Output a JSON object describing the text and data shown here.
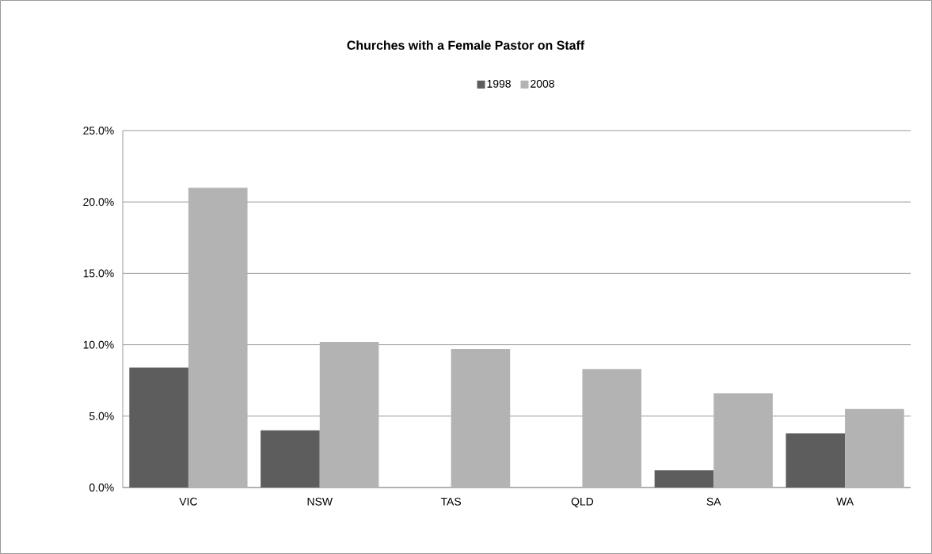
{
  "chart_data": {
    "type": "bar",
    "title": "Churches with a Female Pastor on Staff",
    "categories": [
      "VIC",
      "NSW",
      "TAS",
      "QLD",
      "SA",
      "WA"
    ],
    "series": [
      {
        "name": "1998",
        "color": "#5d5d5d",
        "values": [
          8.4,
          4.0,
          0,
          0,
          1.2,
          3.8
        ]
      },
      {
        "name": "2008",
        "color": "#b3b3b3",
        "values": [
          21.0,
          10.2,
          9.7,
          8.3,
          6.6,
          5.5
        ]
      }
    ],
    "ylim": [
      0,
      25
    ],
    "yticks": [
      {
        "value": 0,
        "label": "0.0%"
      },
      {
        "value": 5,
        "label": "5.0%"
      },
      {
        "value": 10,
        "label": "10.0%"
      },
      {
        "value": 15,
        "label": "15.0%"
      },
      {
        "value": 20,
        "label": "20.0%"
      },
      {
        "value": 25,
        "label": "25.0%"
      }
    ],
    "grid": "y",
    "legend": "top"
  }
}
